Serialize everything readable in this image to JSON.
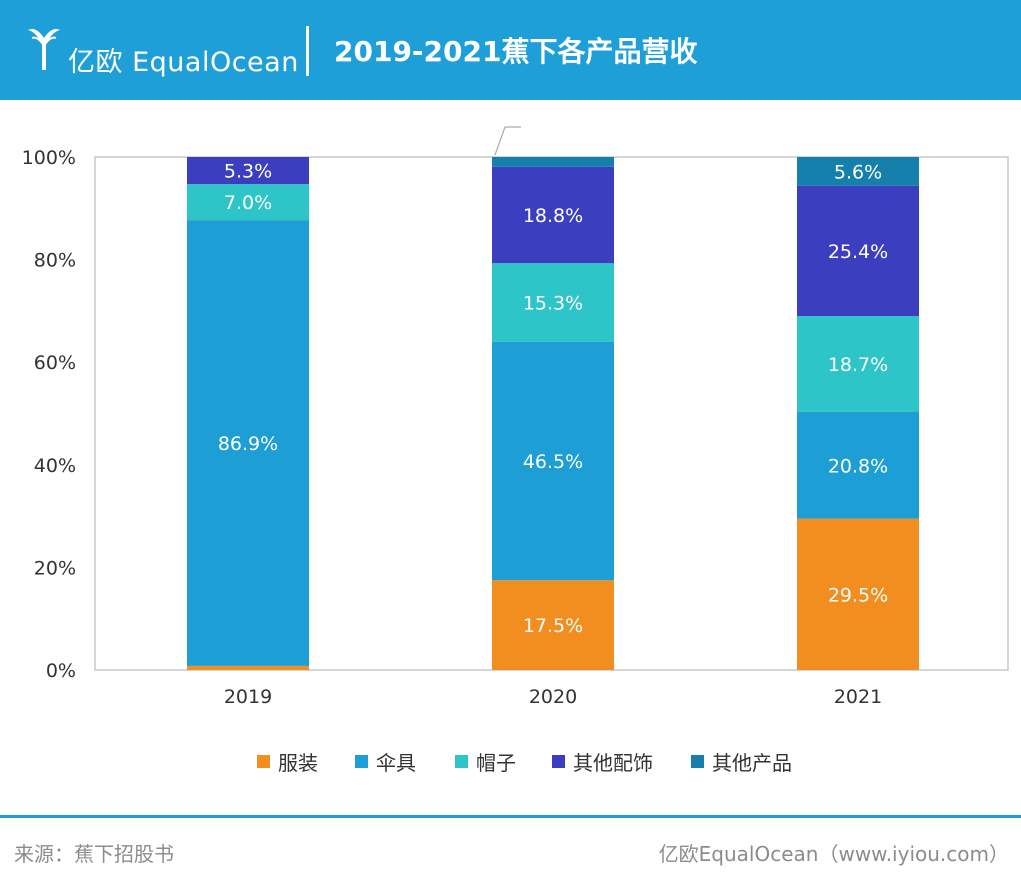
{
  "header": {
    "logo_text": "亿欧 EqualOcean",
    "title": "2019-2021蕉下各产品营收"
  },
  "colors": {
    "header_bg": "#1e9fd8",
    "服装": "#f28e20",
    "伞具": "#1d9fd6",
    "帽子": "#2ec5c8",
    "其他配饰": "#3b3fbf",
    "其他产品": "#1580ac"
  },
  "chart_data": {
    "type": "bar",
    "stacked": true,
    "percent": true,
    "categories": [
      "2019",
      "2020",
      "2021"
    ],
    "series": [
      {
        "name": "服装",
        "values": [
          0.8,
          17.5,
          29.5
        ],
        "labels": [
          "0.8%",
          "17.5%",
          "29.5%"
        ]
      },
      {
        "name": "伞具",
        "values": [
          86.9,
          46.5,
          20.8
        ],
        "labels": [
          "86.9%",
          "46.5%",
          "20.8%"
        ]
      },
      {
        "name": "帽子",
        "values": [
          7.0,
          15.3,
          18.7
        ],
        "labels": [
          "7.0%",
          "15.3%",
          "18.7%"
        ]
      },
      {
        "name": "其他配饰",
        "values": [
          5.3,
          18.8,
          25.4
        ],
        "labels": [
          "5.3%",
          "18.8%",
          "25.4%"
        ]
      },
      {
        "name": "其他产品",
        "values": [
          0,
          1.9,
          5.6
        ],
        "labels": [
          "",
          "1.9%",
          "5.6%"
        ]
      }
    ],
    "yticks": [
      "0%",
      "20%",
      "40%",
      "60%",
      "80%",
      "100%"
    ],
    "ylim": [
      0,
      100
    ],
    "legend_position": "bottom"
  },
  "footer": {
    "source": "来源：蕉下招股书",
    "brand": "亿欧EqualOcean（www.iyiou.com）"
  }
}
